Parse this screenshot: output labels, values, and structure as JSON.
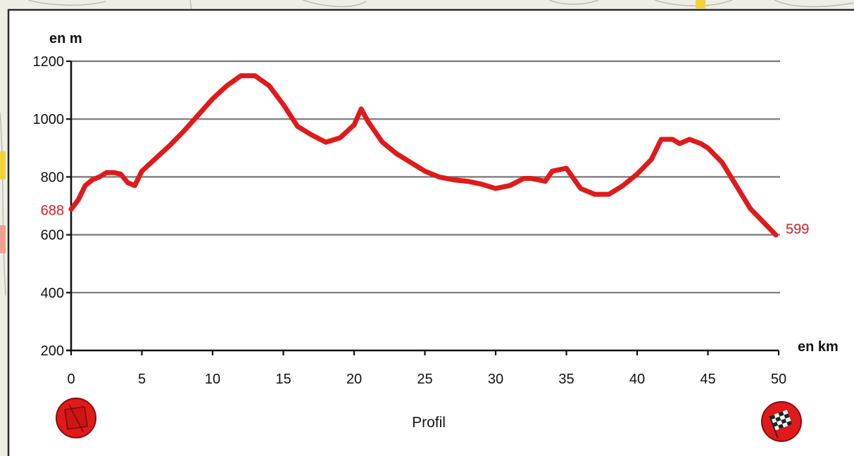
{
  "chart_data": {
    "type": "line",
    "title": "Profil",
    "xlabel": "en km",
    "ylabel": "en m",
    "xlim": [
      0,
      50
    ],
    "ylim": [
      200,
      1200
    ],
    "x_ticks": [
      0,
      5,
      10,
      15,
      20,
      25,
      30,
      35,
      40,
      45,
      50
    ],
    "y_ticks": [
      200,
      400,
      600,
      800,
      1000,
      1200
    ],
    "grid": "horizontal",
    "start_label": "688",
    "end_label": "599",
    "colors": {
      "line": "#e01a1a",
      "grid": "#777777",
      "axis": "#111111",
      "panel": "#ffffff"
    },
    "icons": {
      "start": "start-disc-icon",
      "finish": "checkered-flag-icon"
    },
    "series": [
      {
        "x": [
          0,
          0.5,
          1,
          1.5,
          2,
          2.5,
          3,
          3.5,
          4,
          4.5,
          5,
          6,
          7,
          8,
          9,
          10,
          11,
          12,
          13,
          14,
          15,
          16,
          17,
          18,
          19,
          20,
          20.5,
          21,
          22,
          23,
          24,
          25,
          26,
          27,
          28,
          29,
          30,
          31,
          32,
          32.5,
          33,
          33.5,
          34,
          35,
          36,
          37,
          38,
          39,
          40,
          41,
          41.7,
          42.5,
          43,
          43.7,
          44.5,
          45,
          46,
          47,
          48,
          49,
          49.8
        ],
        "values": [
          688,
          720,
          770,
          790,
          800,
          815,
          815,
          810,
          780,
          770,
          820,
          865,
          910,
          960,
          1015,
          1070,
          1115,
          1150,
          1150,
          1115,
          1050,
          975,
          945,
          920,
          935,
          980,
          1035,
          990,
          920,
          880,
          850,
          820,
          800,
          790,
          785,
          775,
          760,
          770,
          795,
          795,
          790,
          785,
          820,
          830,
          760,
          740,
          740,
          770,
          810,
          860,
          930,
          930,
          915,
          930,
          915,
          900,
          850,
          770,
          690,
          640,
          599
        ]
      }
    ]
  }
}
